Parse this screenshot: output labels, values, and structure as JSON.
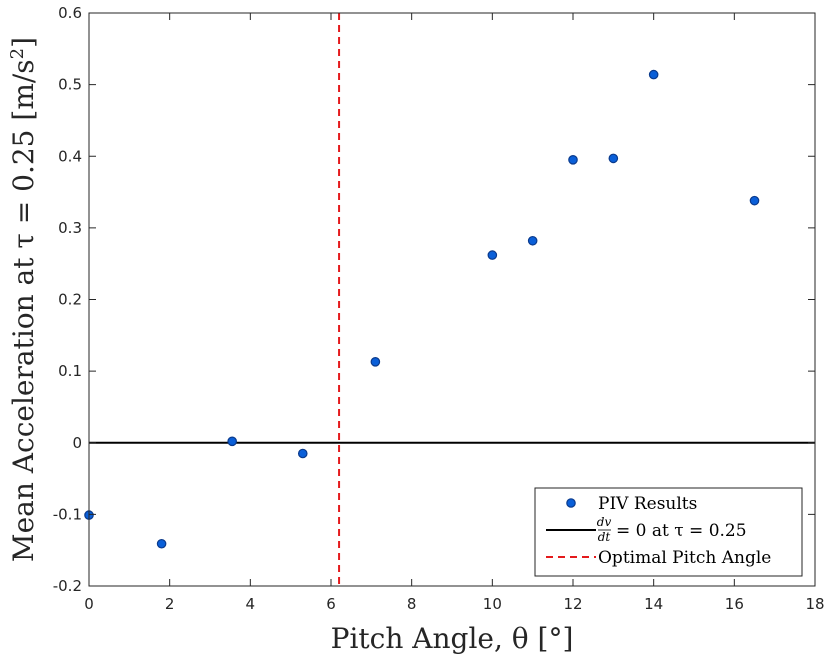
{
  "chart_data": {
    "type": "scatter",
    "title": "",
    "xlabel": "Pitch Angle, θ [°]",
    "ylabel_prefix": "Mean Acceleration at τ = 0.25 [m/s",
    "ylabel_exp": "2",
    "ylabel_suffix": "]",
    "xlim": [
      0,
      18
    ],
    "ylim": [
      -0.2,
      0.6
    ],
    "xticks": [
      0,
      2,
      4,
      6,
      8,
      10,
      12,
      14,
      16,
      18
    ],
    "yticks": [
      -0.2,
      -0.1,
      0,
      0.1,
      0.2,
      0.3,
      0.4,
      0.5,
      0.6
    ],
    "xtick_labels": [
      "0",
      "2",
      "4",
      "6",
      "8",
      "10",
      "12",
      "14",
      "16",
      "18"
    ],
    "ytick_labels": [
      "-0.2",
      "-0.1",
      "0",
      "0.1",
      "0.2",
      "0.3",
      "0.4",
      "0.5",
      "0.6"
    ],
    "grid": false,
    "series": [
      {
        "name": "PIV Results",
        "kind": "scatter",
        "color": "#0a5fd8",
        "x": [
          0,
          1.8,
          3.55,
          5.3,
          7.1,
          10,
          11,
          12,
          13,
          14,
          16.5
        ],
        "y": [
          -0.101,
          -0.141,
          0.002,
          -0.015,
          0.113,
          0.262,
          0.282,
          0.395,
          0.397,
          0.514,
          0.338
        ]
      },
      {
        "name": "dv/dt = 0 at τ = 0.25",
        "kind": "hline",
        "value": 0,
        "color": "#000000"
      },
      {
        "name": "Optimal Pitch Angle",
        "kind": "vline",
        "value": 6.2,
        "color": "#e41a1c"
      }
    ],
    "legend": {
      "position": "bottom-right",
      "entries": [
        "PIV Results",
        "= 0 at τ = 0.25",
        "Optimal Pitch Angle"
      ],
      "frac_num": "dv",
      "frac_den": "dt"
    }
  }
}
